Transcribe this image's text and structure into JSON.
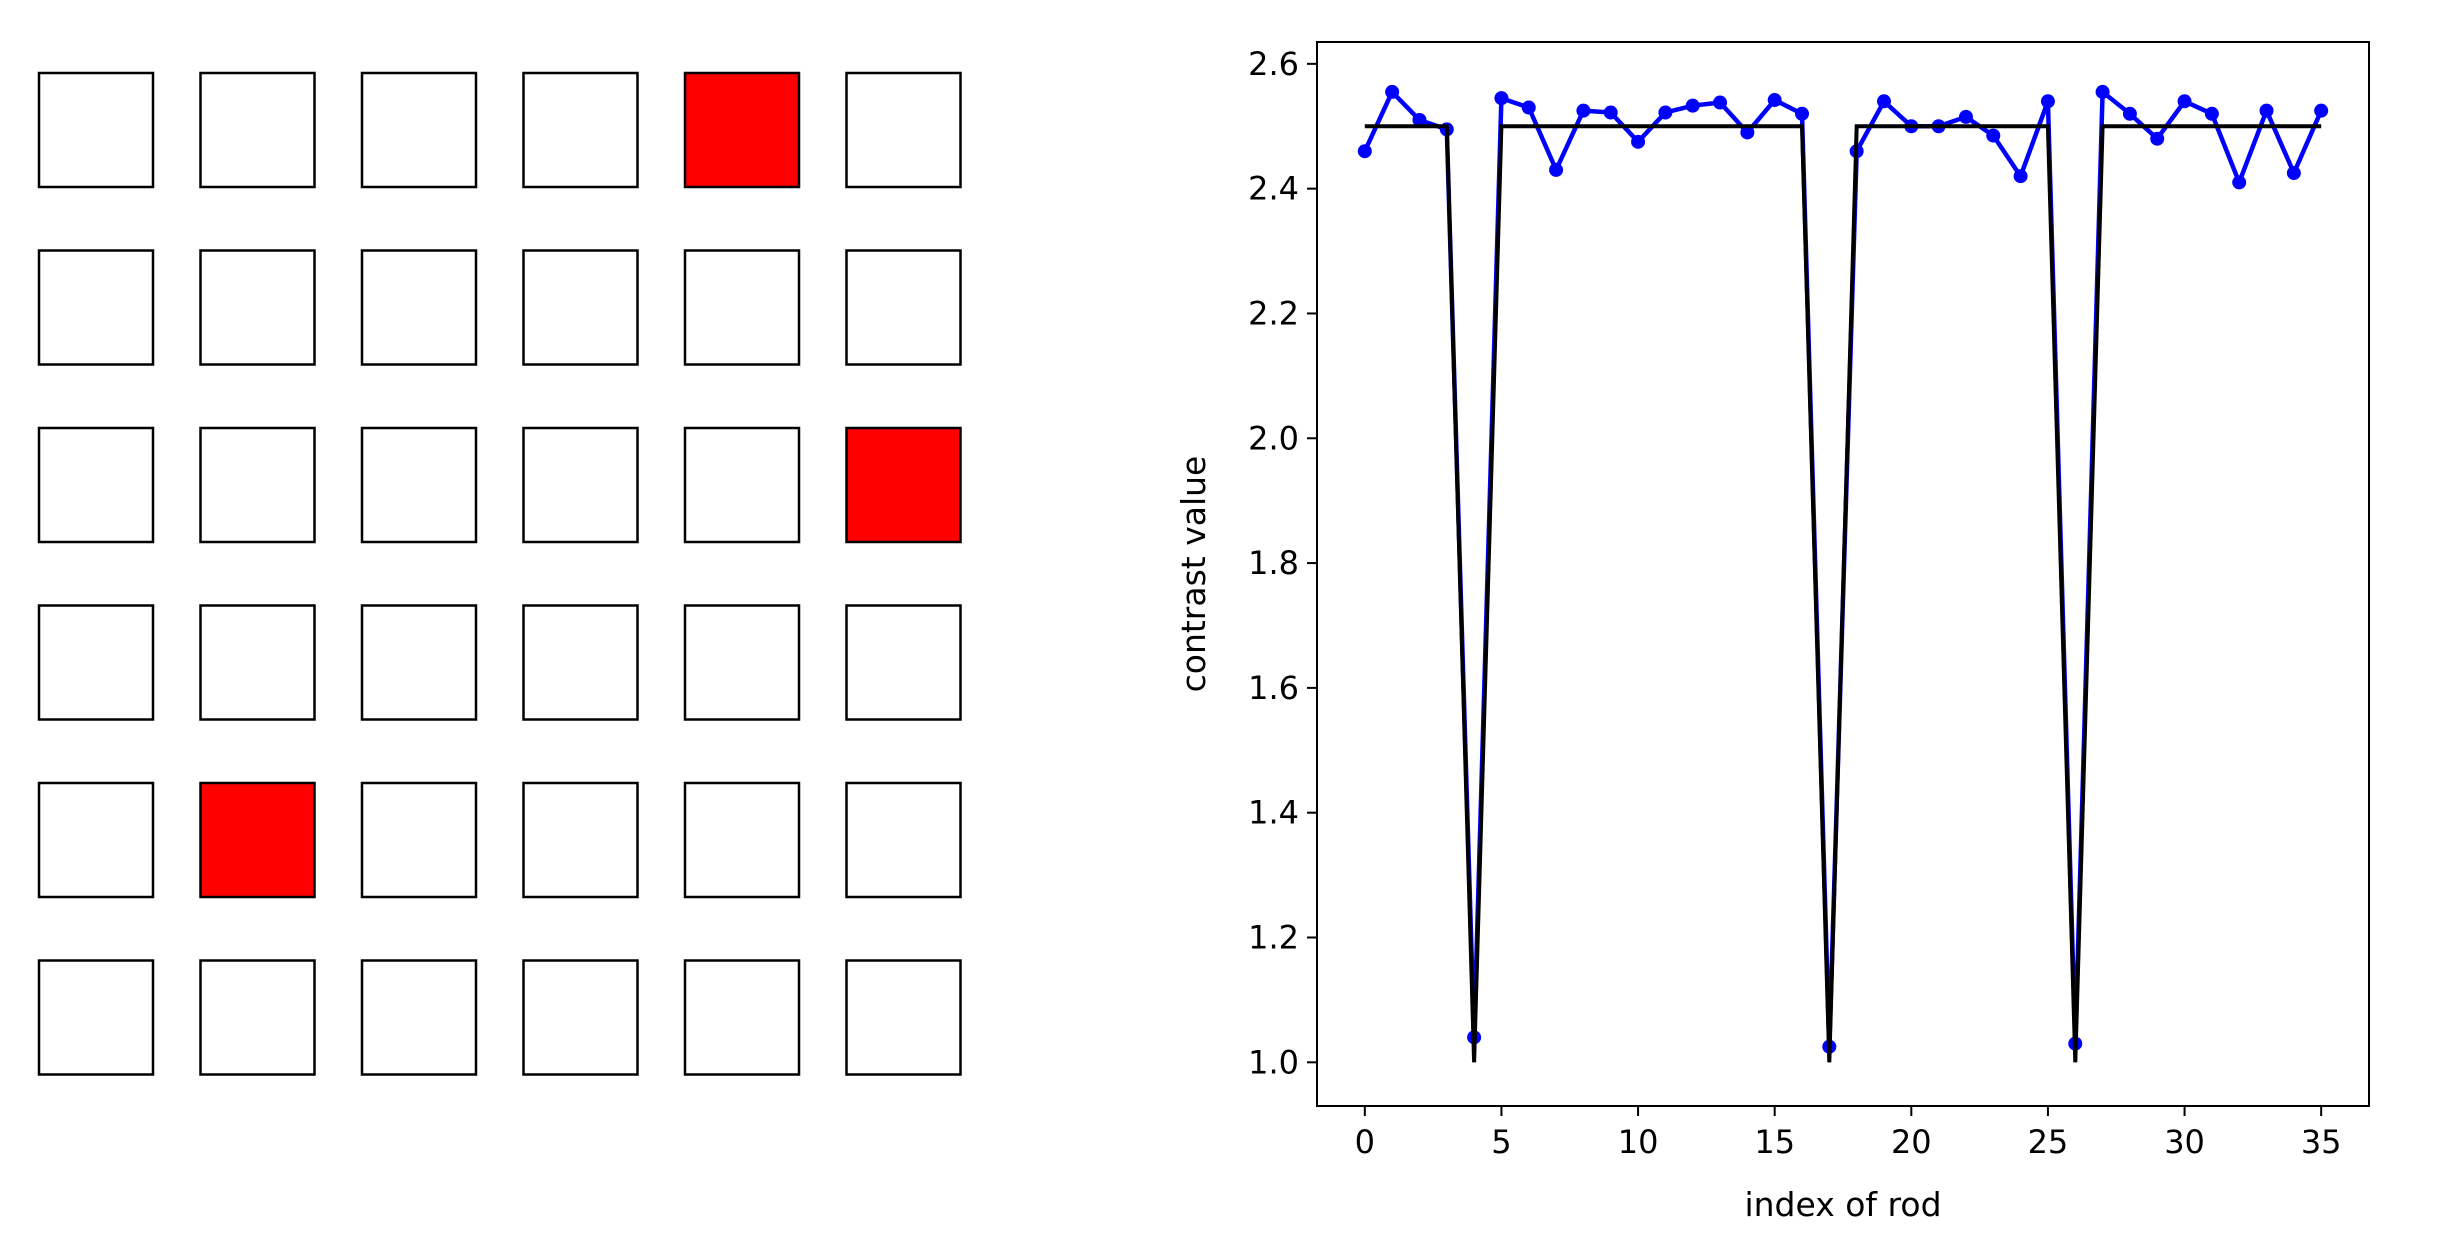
{
  "chart_data": [
    {
      "type": "grid",
      "rows": 6,
      "cols": 6,
      "cell_fill": "#ffffff",
      "highlight_fill": "#ff0000",
      "highlighted_cells": [
        {
          "row": 0,
          "col": 4
        },
        {
          "row": 2,
          "col": 5
        },
        {
          "row": 4,
          "col": 1
        }
      ]
    },
    {
      "type": "line",
      "xlabel": "index of rod",
      "ylabel": "contrast value",
      "xlim": [
        -1.75,
        36.75
      ],
      "ylim": [
        0.93,
        2.635
      ],
      "xticks": [
        0,
        5,
        10,
        15,
        20,
        25,
        30,
        35
      ],
      "yticks": [
        1.0,
        1.2,
        1.4,
        1.6,
        1.8,
        2.0,
        2.2,
        2.4,
        2.6
      ],
      "grid": false,
      "series": [
        {
          "color": "#0000ff",
          "marker": "dot",
          "x": [
            0,
            1,
            2,
            3,
            4,
            5,
            6,
            7,
            8,
            9,
            10,
            11,
            12,
            13,
            14,
            15,
            16,
            17,
            18,
            19,
            20,
            21,
            22,
            23,
            24,
            25,
            26,
            27,
            28,
            29,
            30,
            31,
            32,
            33,
            34,
            35
          ],
          "values": [
            2.46,
            2.555,
            2.51,
            2.495,
            1.04,
            2.545,
            2.53,
            2.43,
            2.525,
            2.522,
            2.475,
            2.522,
            2.533,
            2.538,
            2.49,
            2.542,
            2.52,
            1.025,
            2.46,
            2.54,
            2.5,
            2.5,
            2.515,
            2.485,
            2.42,
            2.54,
            1.03,
            2.555,
            2.52,
            2.48,
            2.54,
            2.52,
            2.41,
            2.525,
            2.425,
            2.525
          ]
        },
        {
          "color": "#000000",
          "marker": "none",
          "x": [
            0,
            1,
            2,
            3,
            4,
            5,
            6,
            7,
            8,
            9,
            10,
            11,
            12,
            13,
            14,
            15,
            16,
            17,
            18,
            19,
            20,
            21,
            22,
            23,
            24,
            25,
            26,
            27,
            28,
            29,
            30,
            31,
            32,
            33,
            34,
            35
          ],
          "values": [
            2.5,
            2.5,
            2.5,
            2.5,
            1.0,
            2.5,
            2.5,
            2.5,
            2.5,
            2.5,
            2.5,
            2.5,
            2.5,
            2.5,
            2.5,
            2.5,
            2.5,
            1.0,
            2.5,
            2.5,
            2.5,
            2.5,
            2.5,
            2.5,
            2.5,
            2.5,
            1.0,
            2.5,
            2.5,
            2.5,
            2.5,
            2.5,
            2.5,
            2.5,
            2.5,
            2.5
          ]
        }
      ]
    }
  ]
}
